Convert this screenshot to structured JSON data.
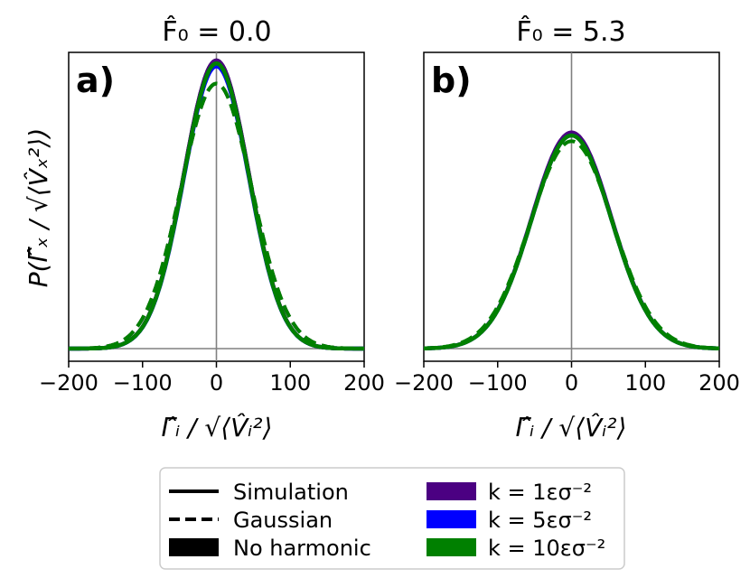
{
  "chart_data": [
    {
      "type": "line",
      "panel_label": "a)",
      "title": "F̂₀ = 0.0",
      "xlabel": "Γ̂ᵢ / √⟨V̂ᵢ²⟩",
      "ylabel": "P(Γ̂ₓ / √⟨V̂ₓ²⟩)",
      "xlim": [
        -200,
        200
      ],
      "x_ticks": [
        "−200",
        "−100",
        "0",
        "100",
        "200"
      ],
      "y_ticks_shown": false,
      "reference_lines": {
        "x": 0,
        "y": 0
      },
      "distributions": [
        {
          "series": "Simulation",
          "line": "solid",
          "color": "#000000",
          "mean": 0,
          "std": 44,
          "peak": 1.0
        },
        {
          "series": "Gaussian",
          "line": "dashed",
          "color": "#000000",
          "mean": 0,
          "std": 48,
          "peak": 0.92
        },
        {
          "series": "k = 1εσ⁻²",
          "line": "solid",
          "color": "#4b0082",
          "mean": 0,
          "std": 44,
          "peak": 1.0
        },
        {
          "series": "k = 5εσ⁻²",
          "line": "solid",
          "color": "#0000ff",
          "mean": 0,
          "std": 44,
          "peak": 0.98
        },
        {
          "series": "k = 10εσ⁻²",
          "line": "solid",
          "color": "#008000",
          "mean": 0,
          "std": 44,
          "peak": 0.99
        },
        {
          "series": "k = 10εσ⁻² Gaussian",
          "line": "dashed",
          "color": "#008000",
          "mean": 0,
          "std": 48,
          "peak": 0.92
        }
      ]
    },
    {
      "type": "line",
      "panel_label": "b)",
      "title": "F̂₀ = 5.3",
      "xlabel": "Γ̂ᵢ / √⟨V̂ᵢ²⟩",
      "xlim": [
        -200,
        200
      ],
      "x_ticks": [
        "−200",
        "−100",
        "0",
        "100",
        "200"
      ],
      "y_ticks_shown": false,
      "reference_lines": {
        "x": 0,
        "y": 0
      },
      "distributions": [
        {
          "series": "k = 1εσ⁻²",
          "line": "solid",
          "color": "#4b0082",
          "mean": 0,
          "std": 54,
          "peak": 0.75
        },
        {
          "series": "k = 5εσ⁻²",
          "line": "solid",
          "color": "#0000ff",
          "mean": 0,
          "std": 54,
          "peak": 0.74
        },
        {
          "series": "k = 10εσ⁻²",
          "line": "solid",
          "color": "#008000",
          "mean": 0,
          "std": 54,
          "peak": 0.74
        },
        {
          "series": "Gaussian",
          "line": "dashed",
          "color": "#008000",
          "mean": 0,
          "std": 56,
          "peak": 0.72
        }
      ]
    }
  ],
  "legend": {
    "placement": "bottom-center",
    "entries": [
      {
        "label": "Simulation",
        "style": "solid-line",
        "color": "#000000"
      },
      {
        "label": "Gaussian",
        "style": "dashed-line",
        "color": "#000000"
      },
      {
        "label": "No harmonic",
        "style": "patch",
        "color": "#000000"
      },
      {
        "label": "k = 1εσ⁻²",
        "style": "patch",
        "color": "#4b0082"
      },
      {
        "label": "k = 5εσ⁻²",
        "style": "patch",
        "color": "#0000ff"
      },
      {
        "label": "k = 10εσ⁻²",
        "style": "patch",
        "color": "#008000"
      }
    ]
  }
}
